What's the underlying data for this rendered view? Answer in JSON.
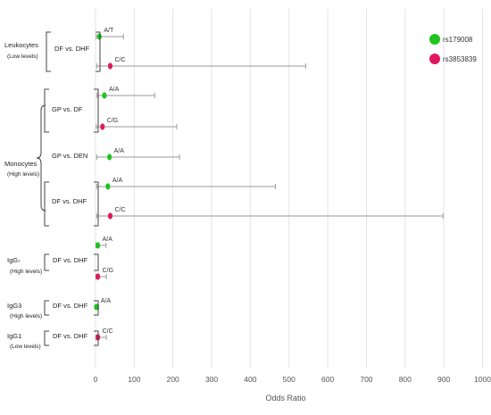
{
  "chart_data": {
    "type": "scatter",
    "subtype": "forest-plot",
    "xlabel": "Odds Ratio",
    "xlim": [
      0,
      1000
    ],
    "xticks": [
      0,
      100,
      200,
      300,
      400,
      500,
      600,
      700,
      800,
      900,
      1000
    ],
    "grid": "vertical",
    "legend_position": "top-right",
    "series": [
      {
        "name": "rs179008",
        "color": "#1fc41f"
      },
      {
        "name": "rs3853839",
        "color": "#e0185e"
      }
    ],
    "groups": [
      {
        "label": "Leukocytes",
        "sublabel": "(Low levels)"
      },
      {
        "label": "Monocytes",
        "sublabel": "(High levels)"
      },
      {
        "label": "IgG₇",
        "sublabel": "(High levels)"
      },
      {
        "label": "IgG3",
        "sublabel": "(High levels)"
      },
      {
        "label": "IgG1",
        "sublabel": "(Low levels)"
      }
    ],
    "comparisons": [
      {
        "group": 0,
        "label": "DF vs. DHF"
      },
      {
        "group": 1,
        "label": "GP vs. DF"
      },
      {
        "group": 1,
        "label": "GP vs. DEN"
      },
      {
        "group": 1,
        "label": "DF vs. DHF"
      },
      {
        "group": 2,
        "label": "DF vs. DHF"
      },
      {
        "group": 3,
        "label": "DF vs. DHF"
      },
      {
        "group": 4,
        "label": "DF vs. DHF"
      }
    ],
    "rows": [
      {
        "comparison": 0,
        "series": 0,
        "genotype": "A/T",
        "or": 10,
        "lo": 2,
        "hi": 72
      },
      {
        "comparison": 0,
        "series": 1,
        "genotype": "C/C",
        "or": 38,
        "lo": 3,
        "hi": 543
      },
      {
        "comparison": 1,
        "series": 0,
        "genotype": "A/A",
        "or": 23,
        "lo": 4,
        "hi": 153
      },
      {
        "comparison": 1,
        "series": 1,
        "genotype": "C/G",
        "or": 18,
        "lo": 2,
        "hi": 210
      },
      {
        "comparison": 2,
        "series": 0,
        "genotype": "A/A",
        "or": 36,
        "lo": 3,
        "hi": 217
      },
      {
        "comparison": 3,
        "series": 0,
        "genotype": "A/A",
        "or": 32,
        "lo": 3,
        "hi": 465
      },
      {
        "comparison": 3,
        "series": 1,
        "genotype": "C/C",
        "or": 38,
        "lo": 3,
        "hi": 898
      },
      {
        "comparison": 4,
        "series": 0,
        "genotype": "A/A",
        "or": 6,
        "lo": 1,
        "hi": 27
      },
      {
        "comparison": 4,
        "series": 1,
        "genotype": "C/G",
        "or": 6,
        "lo": 1,
        "hi": 28
      },
      {
        "comparison": 5,
        "series": 0,
        "genotype": "A/A",
        "or": 2,
        "lo": 1,
        "hi": 8
      },
      {
        "comparison": 6,
        "series": 1,
        "genotype": "C/C",
        "or": 6,
        "lo": 1,
        "hi": 28
      }
    ]
  }
}
